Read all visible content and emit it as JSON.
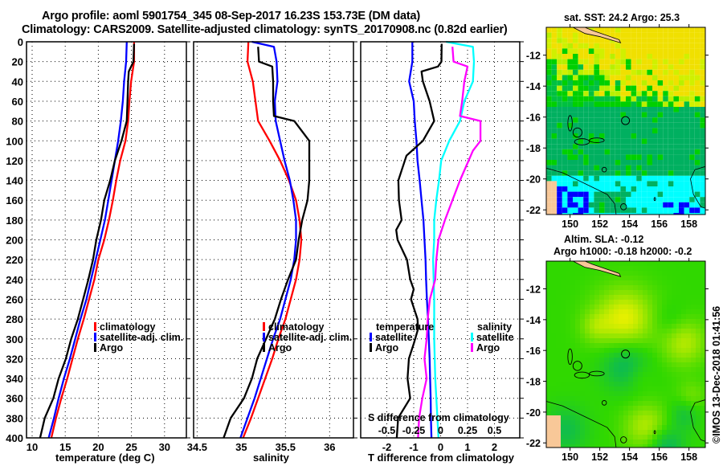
{
  "header": {
    "title_line1": "Argo profile: aoml 5901754_345 08-Sep-2017 16.23S 153.73E (DM data)",
    "title_line2": "Climatology: CARS2009. Satellite-adjusted climatology: synTS_20170908.nc (0.82d earlier)"
  },
  "colors": {
    "climatology": "#ff0000",
    "satellite": "#0000ff",
    "argo": "#000000",
    "sal_satellite": "#00ffff",
    "sal_argo": "#ff00ff"
  },
  "chart_data": [
    {
      "type": "line",
      "panel": "temperature",
      "xlabel": "temperature (deg C)",
      "ylabel": "",
      "xlim": [
        9.15,
        33.3
      ],
      "ylim": [
        400,
        0
      ],
      "xticks": [
        "10",
        "15",
        "20",
        "25",
        "30"
      ],
      "yticks": [
        "0",
        "20",
        "40",
        "60",
        "80",
        "100",
        "120",
        "140",
        "160",
        "180",
        "200",
        "220",
        "240",
        "260",
        "280",
        "300",
        "320",
        "340",
        "360",
        "380",
        "400"
      ],
      "grid": true,
      "legend": {
        "placement": "lower-right",
        "items": [
          "climatology",
          "satellite-adj. clim.",
          "Argo"
        ]
      },
      "series": [
        {
          "name": "climatology",
          "color": "#ff0000",
          "points": [
            [
              25.4,
              0
            ],
            [
              25.4,
              20
            ],
            [
              24.95,
              40
            ],
            [
              24.7,
              60
            ],
            [
              24.5,
              80
            ],
            [
              24.1,
              100
            ],
            [
              23.3,
              120
            ],
            [
              22.7,
              140
            ],
            [
              22.2,
              160
            ],
            [
              21.6,
              180
            ],
            [
              20.9,
              200
            ],
            [
              20.0,
              220
            ],
            [
              19.4,
              240
            ],
            [
              18.6,
              260
            ],
            [
              17.8,
              280
            ],
            [
              16.9,
              300
            ],
            [
              16.1,
              320
            ],
            [
              15.3,
              340
            ],
            [
              14.4,
              360
            ],
            [
              13.6,
              380
            ],
            [
              12.9,
              400
            ]
          ]
        },
        {
          "name": "satellite-adj. clim.",
          "color": "#0000ff",
          "points": [
            [
              24.3,
              0
            ],
            [
              24.2,
              20
            ],
            [
              23.9,
              40
            ],
            [
              23.7,
              60
            ],
            [
              23.4,
              80
            ],
            [
              23.0,
              100
            ],
            [
              22.5,
              120
            ],
            [
              22.0,
              140
            ],
            [
              21.5,
              160
            ],
            [
              21.0,
              180
            ],
            [
              20.3,
              200
            ],
            [
              19.6,
              220
            ],
            [
              18.9,
              240
            ],
            [
              18.2,
              260
            ],
            [
              17.3,
              280
            ],
            [
              16.5,
              300
            ],
            [
              15.7,
              320
            ],
            [
              14.8,
              340
            ],
            [
              14.0,
              360
            ],
            [
              13.3,
              380
            ],
            [
              12.5,
              400
            ]
          ]
        },
        {
          "name": "Argo",
          "color": "#000000",
          "points": [
            [
              25.4,
              2
            ],
            [
              25.3,
              20
            ],
            [
              24.6,
              30
            ],
            [
              24.5,
              40
            ],
            [
              24.4,
              60
            ],
            [
              24.3,
              80
            ],
            [
              23.5,
              100
            ],
            [
              22.5,
              120
            ],
            [
              21.8,
              140
            ],
            [
              20.9,
              160
            ],
            [
              20.4,
              180
            ],
            [
              19.7,
              200
            ],
            [
              19.2,
              220
            ],
            [
              18.5,
              240
            ],
            [
              17.7,
              260
            ],
            [
              16.9,
              280
            ],
            [
              15.9,
              300
            ],
            [
              15.1,
              320
            ],
            [
              14.0,
              340
            ],
            [
              13.2,
              360
            ],
            [
              11.9,
              380
            ],
            [
              11.2,
              400
            ]
          ]
        }
      ]
    },
    {
      "type": "line",
      "panel": "salinity",
      "xlabel": "salinity",
      "xlim": [
        34.46,
        36.27
      ],
      "ylim": [
        400,
        0
      ],
      "xticks": [
        "34.5",
        "35",
        "35.5",
        "36"
      ],
      "grid": true,
      "legend": {
        "placement": "lower-right",
        "items": [
          "climatology",
          "satellite-adj. clim.",
          "Argo"
        ]
      },
      "series": [
        {
          "name": "climatology",
          "color": "#ff0000",
          "points": [
            [
              35.08,
              0
            ],
            [
              35.07,
              20
            ],
            [
              35.13,
              40
            ],
            [
              35.16,
              60
            ],
            [
              35.19,
              80
            ],
            [
              35.32,
              100
            ],
            [
              35.44,
              120
            ],
            [
              35.54,
              140
            ],
            [
              35.62,
              160
            ],
            [
              35.66,
              180
            ],
            [
              35.68,
              200
            ],
            [
              35.66,
              220
            ],
            [
              35.62,
              240
            ],
            [
              35.56,
              260
            ],
            [
              35.5,
              280
            ],
            [
              35.42,
              300
            ],
            [
              35.35,
              320
            ],
            [
              35.27,
              340
            ],
            [
              35.19,
              360
            ],
            [
              35.11,
              380
            ],
            [
              35.02,
              400
            ]
          ]
        },
        {
          "name": "satellite-adj. clim.",
          "color": "#0000ff",
          "points": [
            [
              35.12,
              0
            ],
            [
              35.37,
              5
            ],
            [
              35.4,
              20
            ],
            [
              35.41,
              40
            ],
            [
              35.38,
              60
            ],
            [
              35.39,
              80
            ],
            [
              35.44,
              100
            ],
            [
              35.49,
              120
            ],
            [
              35.55,
              140
            ],
            [
              35.59,
              160
            ],
            [
              35.62,
              180
            ],
            [
              35.62,
              200
            ],
            [
              35.6,
              220
            ],
            [
              35.56,
              240
            ],
            [
              35.5,
              260
            ],
            [
              35.44,
              280
            ],
            [
              35.36,
              300
            ],
            [
              35.29,
              320
            ],
            [
              35.22,
              340
            ],
            [
              35.15,
              360
            ],
            [
              35.07,
              380
            ],
            [
              34.99,
              400
            ]
          ]
        },
        {
          "name": "Argo",
          "color": "#000000",
          "points": [
            [
              35.19,
              5
            ],
            [
              35.2,
              20
            ],
            [
              35.35,
              25
            ],
            [
              35.36,
              40
            ],
            [
              35.36,
              60
            ],
            [
              35.37,
              75
            ],
            [
              35.6,
              80
            ],
            [
              35.77,
              100
            ],
            [
              35.77,
              120
            ],
            [
              35.77,
              140
            ],
            [
              35.75,
              160
            ],
            [
              35.69,
              180
            ],
            [
              35.65,
              200
            ],
            [
              35.62,
              220
            ],
            [
              35.53,
              240
            ],
            [
              35.45,
              260
            ],
            [
              35.38,
              280
            ],
            [
              35.28,
              300
            ],
            [
              35.18,
              320
            ],
            [
              35.12,
              340
            ],
            [
              35.03,
              360
            ],
            [
              34.88,
              380
            ],
            [
              34.8,
              400
            ]
          ]
        }
      ]
    },
    {
      "type": "line",
      "panel": "difference",
      "xlabel": "T difference from climatology",
      "x2label": "S difference from climatology",
      "xlim": [
        -2.97,
        2.94
      ],
      "s_scale": 4,
      "ylim": [
        400,
        0
      ],
      "xticks": [
        "-2",
        "-1",
        "0",
        "1",
        "2"
      ],
      "x2ticks": [
        "-0.5",
        "-0.25",
        "0",
        "0.25",
        "0.5"
      ],
      "grid": true,
      "legend": {
        "temperature_header": "temperature",
        "salinity_header": "salinity",
        "items": [
          "satellite",
          "Argo",
          "satellite",
          "Argo"
        ]
      },
      "series": [
        {
          "name": "temperature satellite",
          "color": "#0000ff",
          "axis": "T",
          "points": [
            [
              -1.05,
              0
            ],
            [
              -1.05,
              20
            ],
            [
              -1.17,
              40
            ],
            [
              -1.0,
              60
            ],
            [
              -0.96,
              80
            ],
            [
              -0.9,
              100
            ],
            [
              -0.86,
              120
            ],
            [
              -0.78,
              140
            ],
            [
              -0.71,
              160
            ],
            [
              -0.64,
              180
            ],
            [
              -0.6,
              200
            ],
            [
              -0.56,
              220
            ],
            [
              -0.54,
              240
            ],
            [
              -0.51,
              260
            ],
            [
              -0.47,
              280
            ],
            [
              -0.44,
              300
            ],
            [
              -0.41,
              320
            ],
            [
              -0.39,
              340
            ],
            [
              -0.37,
              360
            ],
            [
              -0.36,
              380
            ],
            [
              -0.34,
              400
            ]
          ]
        },
        {
          "name": "temperature Argo",
          "color": "#000000",
          "axis": "T",
          "points": [
            [
              0.04,
              2
            ],
            [
              0.03,
              20
            ],
            [
              -0.1,
              25
            ],
            [
              -0.71,
              30
            ],
            [
              -0.66,
              40
            ],
            [
              -0.41,
              60
            ],
            [
              -0.24,
              80
            ],
            [
              -0.66,
              100
            ],
            [
              -1.27,
              115
            ],
            [
              -1.45,
              130
            ],
            [
              -1.57,
              140
            ],
            [
              -1.55,
              160
            ],
            [
              -1.45,
              180
            ],
            [
              -1.65,
              190
            ],
            [
              -1.6,
              200
            ],
            [
              -1.25,
              220
            ],
            [
              -1.13,
              240
            ],
            [
              -1.0,
              250
            ],
            [
              -1.1,
              260
            ],
            [
              -0.86,
              280
            ],
            [
              -0.84,
              290
            ],
            [
              -1.0,
              305
            ],
            [
              -1.18,
              320
            ],
            [
              -1.23,
              340
            ],
            [
              -1.13,
              360
            ],
            [
              -1.58,
              380
            ],
            [
              -1.63,
              400
            ]
          ]
        },
        {
          "name": "salinity satellite",
          "color": "#00ffff",
          "axis": "S",
          "points": [
            [
              0.05,
              0
            ],
            [
              0.3,
              5
            ],
            [
              0.31,
              20
            ],
            [
              0.3,
              40
            ],
            [
              0.22,
              60
            ],
            [
              0.18,
              80
            ],
            [
              0.08,
              100
            ],
            [
              0.005,
              120
            ],
            [
              -0.015,
              140
            ],
            [
              -0.04,
              160
            ],
            [
              -0.06,
              180
            ],
            [
              -0.06,
              200
            ],
            [
              -0.07,
              220
            ],
            [
              -0.065,
              240
            ],
            [
              -0.06,
              260
            ],
            [
              -0.06,
              280
            ],
            [
              -0.06,
              300
            ],
            [
              -0.05,
              340
            ],
            [
              -0.03,
              380
            ],
            [
              -0.02,
              400
            ]
          ]
        },
        {
          "name": "salinity Argo",
          "color": "#ff00ff",
          "axis": "S",
          "points": [
            [
              0.11,
              5
            ],
            [
              0.12,
              20
            ],
            [
              0.25,
              25
            ],
            [
              0.22,
              40
            ],
            [
              0.2,
              60
            ],
            [
              0.18,
              75
            ],
            [
              0.37,
              80
            ],
            [
              0.37,
              100
            ],
            [
              0.3,
              110
            ],
            [
              0.18,
              140
            ],
            [
              0.11,
              160
            ],
            [
              0.04,
              180
            ],
            [
              -0.02,
              200
            ],
            [
              -0.04,
              220
            ],
            [
              -0.05,
              240
            ],
            [
              -0.1,
              260
            ],
            [
              -0.12,
              280
            ],
            [
              -0.13,
              300
            ],
            [
              -0.15,
              320
            ],
            [
              -0.13,
              340
            ],
            [
              -0.17,
              360
            ],
            [
              -0.2,
              380
            ],
            [
              -0.21,
              400
            ]
          ]
        }
      ]
    },
    {
      "type": "heatmap",
      "panel": "sst-map",
      "title": "sat. SST: 24.2 Argo: 25.3",
      "lon_range": [
        148.4,
        159.1
      ],
      "lat_range": [
        -22.3,
        -10.2
      ],
      "lon_ticks": [
        "150",
        "152",
        "154",
        "156",
        "158"
      ],
      "lat_ticks": [
        "-12",
        "-14",
        "-16",
        "-18",
        "-20",
        "-22"
      ],
      "marker": {
        "lon": 153.73,
        "lat": -16.23
      }
    },
    {
      "type": "heatmap",
      "panel": "sla-map",
      "title": "Altim. SLA: -0.12",
      "subtitle": "Argo h1000: -0.18 h2000: -0.2",
      "lon_range": [
        148.4,
        159.1
      ],
      "lat_range": [
        -22.3,
        -10.2
      ],
      "lon_ticks": [
        "150",
        "152",
        "154",
        "156",
        "158"
      ],
      "lat_ticks": [
        "-12",
        "-14",
        "-16",
        "-18",
        "-20",
        "-22"
      ],
      "marker": {
        "lon": 153.73,
        "lat": -16.23
      }
    }
  ],
  "footer": {
    "credit": "©IMOS 13-Dec-2018 01:41:56"
  }
}
